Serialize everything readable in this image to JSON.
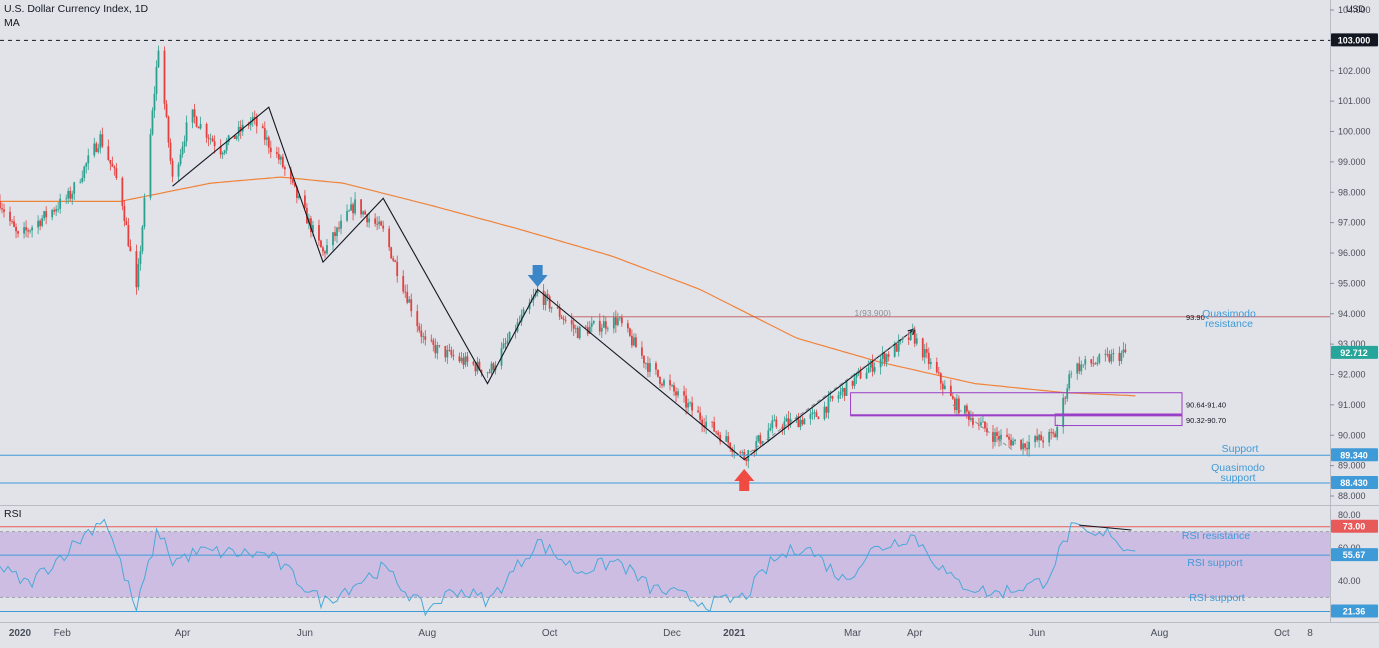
{
  "header": {
    "title": "U.S. Dollar Currency Index, 1D",
    "indicator": "MA",
    "currency": "USD",
    "rsi_label": "RSI"
  },
  "colors": {
    "background": "#e1e3e8",
    "up_candle": "#2e9e8e",
    "down_candle": "#e2413f",
    "moving_average": "#f0833a",
    "zigzag": "#131722",
    "level_line": "#3f9ad8",
    "zone_box": "#9a3fc6",
    "rsi_line": "#4aa8d8",
    "rsi_band": "#c9b6e2",
    "rsi_resistance": "#e85a5a",
    "arrow_down": "#3a86c8",
    "arrow_up": "#ef4b43",
    "last_price_badge": "#26a69a"
  },
  "chart_data": [
    {
      "type": "candlestick",
      "title": "U.S. Dollar Currency Index, 1D",
      "y_axis": {
        "unit": "USD",
        "ticks": [
          "104.000",
          "103.000",
          "102.000",
          "101.000",
          "100.000",
          "99.000",
          "98.000",
          "97.000",
          "96.000",
          "95.000",
          "94.000",
          "93.000",
          "92.000",
          "91.000",
          "90.000",
          "89.000",
          "88.000"
        ],
        "ylim": [
          87.85,
          104.1
        ]
      },
      "x_axis": {
        "ticks": [
          "2020",
          "Feb",
          "Apr",
          "Jun",
          "Aug",
          "Oct",
          "Dec",
          "2021",
          "Mar",
          "Apr",
          "Jun",
          "Aug",
          "Oct",
          "8"
        ]
      },
      "price_path": [
        {
          "x": "2020-01-01",
          "y": 97.7
        },
        {
          "x": "2020-01-10",
          "y": 96.5
        },
        {
          "x": "2020-01-25",
          "y": 97.3
        },
        {
          "x": "2020-02-05",
          "y": 97.9
        },
        {
          "x": "2020-02-20",
          "y": 99.8
        },
        {
          "x": "2020-03-01",
          "y": 98.1
        },
        {
          "x": "2020-03-09",
          "y": 94.7
        },
        {
          "x": "2020-03-20",
          "y": 102.8
        },
        {
          "x": "2020-03-27",
          "y": 98.4
        },
        {
          "x": "2020-04-05",
          "y": 100.6
        },
        {
          "x": "2020-04-20",
          "y": 99.4
        },
        {
          "x": "2020-05-06",
          "y": 100.4
        },
        {
          "x": "2020-05-20",
          "y": 99.0
        },
        {
          "x": "2020-06-10",
          "y": 96.0
        },
        {
          "x": "2020-06-26",
          "y": 97.6
        },
        {
          "x": "2020-07-10",
          "y": 96.7
        },
        {
          "x": "2020-07-31",
          "y": 93.0
        },
        {
          "x": "2020-08-20",
          "y": 92.4
        },
        {
          "x": "2020-09-01",
          "y": 92.1
        },
        {
          "x": "2020-09-25",
          "y": 94.7
        },
        {
          "x": "2020-10-15",
          "y": 93.4
        },
        {
          "x": "2020-11-04",
          "y": 93.8
        },
        {
          "x": "2020-11-20",
          "y": 92.2
        },
        {
          "x": "2020-12-10",
          "y": 90.9
        },
        {
          "x": "2021-01-06",
          "y": 89.3
        },
        {
          "x": "2021-01-20",
          "y": 90.3
        },
        {
          "x": "2021-02-10",
          "y": 90.6
        },
        {
          "x": "2021-03-05",
          "y": 92.0
        },
        {
          "x": "2021-03-31",
          "y": 93.3
        },
        {
          "x": "2021-04-20",
          "y": 91.1
        },
        {
          "x": "2021-05-10",
          "y": 90.0
        },
        {
          "x": "2021-05-25",
          "y": 89.7
        },
        {
          "x": "2021-06-10",
          "y": 90.0
        },
        {
          "x": "2021-06-18",
          "y": 92.2
        },
        {
          "x": "2021-06-30",
          "y": 92.4
        },
        {
          "x": "2021-07-15",
          "y": 92.7
        }
      ],
      "moving_average": [
        {
          "x": "2020-01-01",
          "y": 97.7
        },
        {
          "x": "2020-03-01",
          "y": 97.7
        },
        {
          "x": "2020-04-15",
          "y": 98.3
        },
        {
          "x": "2020-05-20",
          "y": 98.5
        },
        {
          "x": "2020-06-20",
          "y": 98.3
        },
        {
          "x": "2020-08-01",
          "y": 97.6
        },
        {
          "x": "2020-09-15",
          "y": 96.8
        },
        {
          "x": "2020-11-01",
          "y": 95.9
        },
        {
          "x": "2020-12-15",
          "y": 94.8
        },
        {
          "x": "2021-02-01",
          "y": 93.2
        },
        {
          "x": "2021-03-15",
          "y": 92.4
        },
        {
          "x": "2021-05-01",
          "y": 91.7
        },
        {
          "x": "2021-06-15",
          "y": 91.4
        },
        {
          "x": "2021-07-20",
          "y": 91.3
        }
      ],
      "zigzag": [
        {
          "x": "2020-03-27",
          "y": 98.2
        },
        {
          "x": "2020-05-14",
          "y": 100.8
        },
        {
          "x": "2020-06-10",
          "y": 95.7
        },
        {
          "x": "2020-07-10",
          "y": 97.8
        },
        {
          "x": "2020-08-31",
          "y": 91.7
        },
        {
          "x": "2020-09-25",
          "y": 94.8
        },
        {
          "x": "2021-01-06",
          "y": 89.2
        },
        {
          "x": "2021-04-01",
          "y": 93.5
        }
      ],
      "levels": [
        {
          "name": "103.000",
          "y": 103.0,
          "style": "dashed"
        },
        {
          "name": "Support",
          "y": 89.34
        },
        {
          "name": "Quasimodo support",
          "y": 88.43
        },
        {
          "name": "Quasimodo resistance",
          "y": 93.9,
          "line_label": "93.90"
        }
      ],
      "fib_label": "1(93.900)",
      "zones": [
        {
          "label": "90.64-91.40",
          "y_range": [
            90.64,
            91.4
          ],
          "x_range": [
            "2021-02-28",
            "2021-08-31"
          ]
        },
        {
          "label": "90.32-90.70",
          "y_range": [
            90.32,
            90.7
          ],
          "x_range": [
            "2021-06-10",
            "2021-08-31"
          ]
        }
      ],
      "price_badges": [
        {
          "value": "103.000",
          "color": "#131722"
        },
        {
          "value": "92.712",
          "color": "#26a69a"
        },
        {
          "value": "89.340",
          "color": "#3f9ad8"
        },
        {
          "value": "88.430",
          "color": "#3f9ad8"
        }
      ],
      "annotations": [
        {
          "text": "Quasimodo resistance"
        },
        {
          "text": "Support"
        },
        {
          "text": "Quasimodo support"
        }
      ],
      "markers": [
        {
          "type": "arrow-down",
          "x": "2020-09-25"
        },
        {
          "type": "arrow-up",
          "x": "2021-01-06"
        }
      ]
    },
    {
      "type": "line",
      "title": "RSI",
      "y_axis": {
        "ticks": [
          "80.00",
          "60.00",
          "40.00"
        ],
        "ylim": [
          15,
          85
        ]
      },
      "band": [
        30,
        70
      ],
      "rsi_path": [
        {
          "x": "2020-01-01",
          "y": 48
        },
        {
          "x": "2020-01-15",
          "y": 38
        },
        {
          "x": "2020-02-05",
          "y": 60
        },
        {
          "x": "2020-02-22",
          "y": 79
        },
        {
          "x": "2020-03-09",
          "y": 22
        },
        {
          "x": "2020-03-20",
          "y": 72
        },
        {
          "x": "2020-03-27",
          "y": 52
        },
        {
          "x": "2020-04-10",
          "y": 58
        },
        {
          "x": "2020-05-14",
          "y": 56
        },
        {
          "x": "2020-06-10",
          "y": 27
        },
        {
          "x": "2020-07-10",
          "y": 48
        },
        {
          "x": "2020-07-31",
          "y": 22
        },
        {
          "x": "2020-08-15",
          "y": 35
        },
        {
          "x": "2020-09-01",
          "y": 28
        },
        {
          "x": "2020-09-25",
          "y": 64
        },
        {
          "x": "2020-10-15",
          "y": 46
        },
        {
          "x": "2020-11-04",
          "y": 52
        },
        {
          "x": "2020-11-20",
          "y": 36
        },
        {
          "x": "2020-12-20",
          "y": 26
        },
        {
          "x": "2021-01-06",
          "y": 30
        },
        {
          "x": "2021-01-20",
          "y": 52
        },
        {
          "x": "2021-02-05",
          "y": 62
        },
        {
          "x": "2021-02-25",
          "y": 40
        },
        {
          "x": "2021-03-10",
          "y": 58
        },
        {
          "x": "2021-03-31",
          "y": 68
        },
        {
          "x": "2021-04-20",
          "y": 40
        },
        {
          "x": "2021-05-10",
          "y": 32
        },
        {
          "x": "2021-06-05",
          "y": 40
        },
        {
          "x": "2021-06-18",
          "y": 72
        },
        {
          "x": "2021-07-01",
          "y": 66
        },
        {
          "x": "2021-07-08",
          "y": 70
        },
        {
          "x": "2021-07-15",
          "y": 58
        },
        {
          "x": "2021-07-20",
          "y": 62
        }
      ],
      "levels": [
        {
          "name": "RSI resistance",
          "y": 73.0
        },
        {
          "name": "RSI support",
          "y": 55.67
        },
        {
          "name": "RSI support",
          "y": 21.36
        }
      ],
      "price_badges": [
        {
          "value": "73.00",
          "color": "#e85a5a"
        },
        {
          "value": "55.67",
          "color": "#3f9ad8"
        },
        {
          "value": "21.36",
          "color": "#3f9ad8"
        }
      ]
    }
  ]
}
